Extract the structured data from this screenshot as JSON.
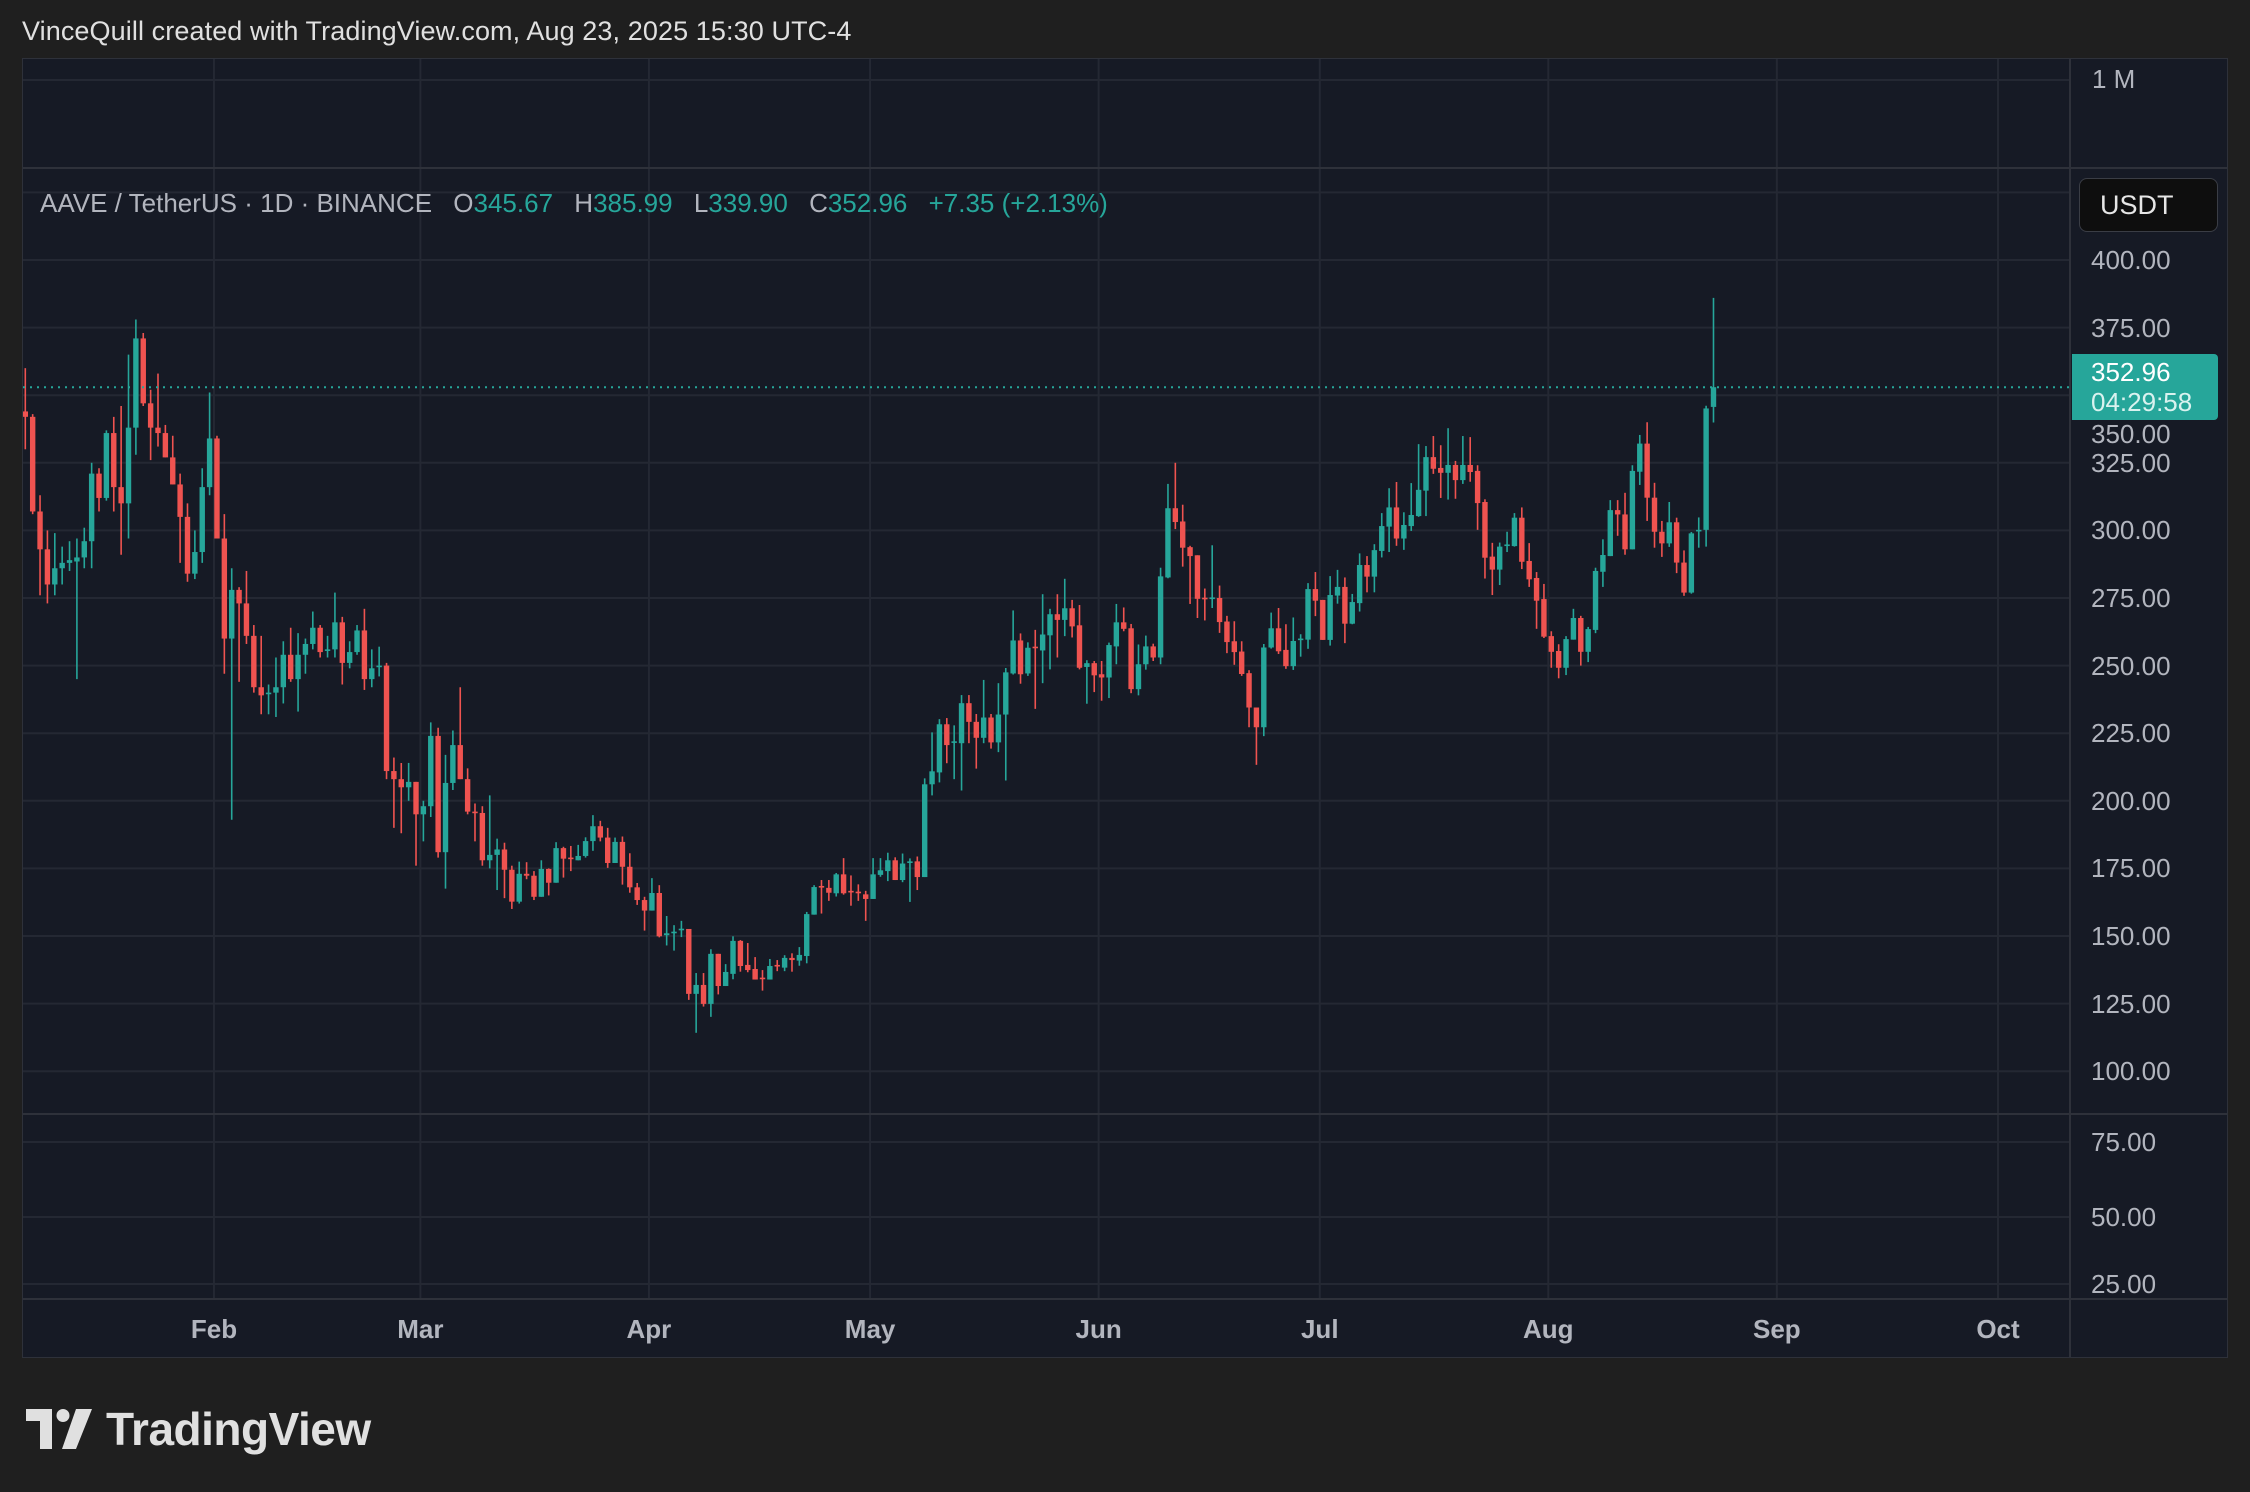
{
  "header": {
    "attribution": "VinceQuill created with TradingView.com, Aug 23, 2025 15:30 UTC-4"
  },
  "legend": {
    "symbol": "AAVE / TetherUS · 1D · BINANCE",
    "o_label": "O",
    "o_value": "345.67",
    "h_label": "H",
    "h_value": "385.99",
    "l_label": "L",
    "l_value": "339.90",
    "c_label": "C",
    "c_value": "352.96",
    "change": "+7.35 (+2.13%)"
  },
  "top_pane": {
    "label": "1 M"
  },
  "currency_button": "USDT",
  "last_price": {
    "value": "352.96",
    "countdown": "04:29:58"
  },
  "footer": {
    "brand": "TradingView"
  },
  "colors": {
    "up": "#26a69a",
    "down": "#ef5350",
    "background": "#161a25",
    "grid": "#242833",
    "last_price_line": "#26a69a"
  },
  "chart_data": {
    "type": "candlestick",
    "interval": "1D",
    "first_date": "2025-01-06",
    "ylim": [
      100,
      400
    ],
    "grid": true,
    "price_ticks": [
      "400.00",
      "375.00",
      "350.00",
      "325.00",
      "300.00",
      "275.00",
      "250.00",
      "225.00",
      "200.00",
      "175.00",
      "150.00",
      "125.00",
      "100.00"
    ],
    "lower_pane_ticks": [
      "75.00",
      "50.00",
      "25.00"
    ],
    "x_ticks": [
      {
        "date": "2025-02-01",
        "label": "Feb"
      },
      {
        "date": "2025-03-01",
        "label": "Mar"
      },
      {
        "date": "2025-04-01",
        "label": "Apr"
      },
      {
        "date": "2025-05-01",
        "label": "May"
      },
      {
        "date": "2025-06-01",
        "label": "Jun"
      },
      {
        "date": "2025-07-01",
        "label": "Jul"
      },
      {
        "date": "2025-08-01",
        "label": "Aug"
      },
      {
        "date": "2025-09-01",
        "label": "Sep"
      },
      {
        "date": "2025-10-01",
        "label": "Oct"
      }
    ],
    "last_price": 352.96,
    "ohlc": [
      [
        344,
        360,
        330,
        342
      ],
      [
        342,
        343,
        306,
        307
      ],
      [
        307,
        313,
        276,
        293
      ],
      [
        293,
        300,
        273,
        280
      ],
      [
        280,
        299,
        276,
        286
      ],
      [
        286,
        294,
        280,
        288
      ],
      [
        288,
        296,
        285,
        289
      ],
      [
        288.5,
        297,
        245,
        290
      ],
      [
        290,
        301,
        286,
        296
      ],
      [
        296,
        325,
        286,
        321
      ],
      [
        321,
        323,
        307,
        312
      ],
      [
        312,
        337,
        311,
        336
      ],
      [
        336,
        342,
        307,
        316
      ],
      [
        316,
        346,
        291,
        310
      ],
      [
        310,
        365,
        297,
        338
      ],
      [
        338,
        378,
        328,
        371
      ],
      [
        371,
        373,
        346,
        347
      ],
      [
        347,
        352,
        326,
        338
      ],
      [
        338,
        358,
        331,
        336
      ],
      [
        336,
        339,
        327,
        327
      ],
      [
        327,
        335,
        317,
        317
      ],
      [
        317,
        321,
        288,
        305
      ],
      [
        305,
        310,
        281,
        284
      ],
      [
        284,
        300,
        282,
        292
      ],
      [
        292,
        323,
        288,
        316
      ],
      [
        316,
        351,
        313,
        334
      ],
      [
        334,
        335,
        297,
        297
      ],
      [
        297,
        306,
        247,
        260
      ],
      [
        260,
        286,
        193,
        278
      ],
      [
        278,
        279,
        244,
        273
      ],
      [
        273,
        285,
        258,
        261
      ],
      [
        261,
        265,
        240,
        242
      ],
      [
        242,
        261,
        232,
        239
      ],
      [
        239.5,
        243,
        232,
        240
      ],
      [
        240,
        253,
        231,
        242
      ],
      [
        242,
        259,
        236,
        254
      ],
      [
        254,
        264,
        244,
        245
      ],
      [
        245,
        262,
        233,
        254
      ],
      [
        254,
        260,
        247,
        258
      ],
      [
        258,
        270,
        256,
        264
      ],
      [
        264,
        265,
        253,
        255
      ],
      [
        255.5,
        261,
        253,
        256
      ],
      [
        256,
        277,
        253,
        266
      ],
      [
        266,
        268,
        243,
        251
      ],
      [
        251,
        259,
        249,
        255
      ],
      [
        255,
        265,
        254,
        263
      ],
      [
        263,
        271,
        241,
        245
      ],
      [
        245,
        256,
        242,
        249
      ],
      [
        249.5,
        257,
        246,
        250
      ],
      [
        250,
        251,
        208,
        211
      ],
      [
        211,
        216,
        190,
        208
      ],
      [
        208,
        214,
        188,
        205
      ],
      [
        205,
        214,
        200,
        207
      ],
      [
        207,
        207,
        176,
        195
      ],
      [
        195,
        200,
        185,
        198
      ],
      [
        198,
        229,
        194,
        224
      ],
      [
        224,
        227,
        179,
        181
      ],
      [
        181,
        217,
        167.5,
        206.6
      ],
      [
        206.6,
        226,
        204,
        220.6
      ],
      [
        220.6,
        242,
        208,
        208
      ],
      [
        208,
        212,
        195,
        196
      ],
      [
        196,
        199,
        185,
        195.5
      ],
      [
        195.5,
        198,
        176,
        178
      ],
      [
        178,
        202,
        175,
        180
      ],
      [
        180,
        186,
        167,
        182
      ],
      [
        182,
        184.5,
        164,
        174.5
      ],
      [
        174.5,
        176,
        160,
        162.7
      ],
      [
        162.7,
        177.5,
        162,
        173
      ],
      [
        173,
        177.3,
        171,
        172.3
      ],
      [
        172.3,
        174,
        163.3,
        164.5
      ],
      [
        164.5,
        178,
        164.5,
        174.8
      ],
      [
        174.8,
        175,
        165,
        169.7
      ],
      [
        169.7,
        184.7,
        169.7,
        182.5
      ],
      [
        182.5,
        183,
        171.6,
        178.6
      ],
      [
        179,
        183.3,
        174,
        178.6
      ],
      [
        178,
        183.7,
        178,
        179.6
      ],
      [
        179.6,
        186.5,
        179,
        185.1
      ],
      [
        185.1,
        194.7,
        181.5,
        190.6
      ],
      [
        190.6,
        192.6,
        185,
        186.4
      ],
      [
        186.4,
        190,
        175.2,
        177
      ],
      [
        177,
        186.4,
        177,
        184.8
      ],
      [
        184.8,
        186.8,
        169,
        175.6
      ],
      [
        175.6,
        180.6,
        166,
        168
      ],
      [
        168,
        169.6,
        161.5,
        163.3
      ],
      [
        163.3,
        164.5,
        152,
        159.4
      ],
      [
        159.4,
        171.4,
        159.4,
        165.9
      ],
      [
        165.9,
        168.8,
        149.5,
        149.9
      ],
      [
        150.3,
        157.4,
        146.5,
        151
      ],
      [
        151.2,
        154,
        144.6,
        151.6
      ],
      [
        152.5,
        155.6,
        149.6,
        152.7
      ],
      [
        152.6,
        152.6,
        126.4,
        128.6
      ],
      [
        128.6,
        136.3,
        114.2,
        131.9
      ],
      [
        131.9,
        136.3,
        123.9,
        124.9
      ],
      [
        124.9,
        145.1,
        120.1,
        143.4
      ],
      [
        143.4,
        143.4,
        128.4,
        131.5
      ],
      [
        131.5,
        139.6,
        131.5,
        136.7
      ],
      [
        136,
        149.9,
        134,
        148.2
      ],
      [
        148.2,
        148.5,
        136.8,
        138.9
      ],
      [
        139.3,
        147.4,
        136.6,
        137.4
      ],
      [
        137.8,
        142.2,
        133.9,
        133.9
      ],
      [
        134.6,
        137.4,
        129.8,
        134.1
      ],
      [
        133.9,
        141.5,
        133.9,
        138.9
      ],
      [
        139.3,
        141.1,
        137,
        138.9
      ],
      [
        138.3,
        142.9,
        137,
        141.9
      ],
      [
        141.9,
        143.6,
        136.8,
        141.1
      ],
      [
        140.9,
        145.9,
        139,
        143
      ],
      [
        142.6,
        158.9,
        139.9,
        158.1
      ],
      [
        157.9,
        168.8,
        157.9,
        168.1
      ],
      [
        168.5,
        170.7,
        158.3,
        167.9
      ],
      [
        167.8,
        170.7,
        163,
        166
      ],
      [
        165.8,
        173.3,
        164.6,
        172.8
      ],
      [
        172.8,
        178.8,
        165.3,
        165.8
      ],
      [
        166.7,
        172.4,
        161.2,
        166.1
      ],
      [
        166.4,
        169.1,
        163,
        165.8
      ],
      [
        165.4,
        166.7,
        155.6,
        163.7
      ],
      [
        163.7,
        178.8,
        163.7,
        172.8
      ],
      [
        172.6,
        178.8,
        171.9,
        174.3
      ],
      [
        174,
        180.8,
        170.3,
        178
      ],
      [
        178,
        179.1,
        170.7,
        170.7
      ],
      [
        170.7,
        180.5,
        169.9,
        176.8
      ],
      [
        177.1,
        178.7,
        162.6,
        177.6
      ],
      [
        177.6,
        179.4,
        167,
        171.8
      ],
      [
        171.8,
        208.3,
        171.8,
        206.1
      ],
      [
        206.1,
        225.3,
        202,
        210.9
      ],
      [
        210.5,
        230.2,
        206.8,
        228.3
      ],
      [
        228.3,
        230.6,
        213.9,
        220.6
      ],
      [
        221.6,
        227.9,
        208,
        222
      ],
      [
        221.3,
        239.1,
        203.8,
        236.1
      ],
      [
        236.1,
        239.1,
        221.3,
        229.2
      ],
      [
        229.2,
        232.1,
        211.9,
        223.3
      ],
      [
        223.3,
        244.7,
        221.3,
        230.8
      ],
      [
        230.8,
        232.1,
        219.3,
        221.6
      ],
      [
        221.6,
        243.5,
        218,
        231.9
      ],
      [
        231.9,
        249.1,
        207.5,
        247.5
      ],
      [
        247.1,
        270.4,
        246.7,
        259.3
      ],
      [
        259.3,
        261.9,
        243.3,
        246.8
      ],
      [
        247.1,
        258.6,
        246.2,
        256.6
      ],
      [
        257,
        263.2,
        234,
        256.6
      ],
      [
        255.6,
        276.4,
        243.5,
        261.5
      ],
      [
        261.2,
        271,
        248.6,
        269
      ],
      [
        269,
        276.4,
        253,
        266.9
      ],
      [
        266.9,
        282.1,
        260.9,
        271.2
      ],
      [
        271.2,
        274.3,
        260.4,
        264.5
      ],
      [
        264.9,
        272.4,
        248.6,
        249.2
      ],
      [
        249.5,
        252,
        235.9,
        250.9
      ],
      [
        250.9,
        251.7,
        240.2,
        246.4
      ],
      [
        246.8,
        251.7,
        237,
        245.6
      ],
      [
        245.6,
        258.5,
        238,
        257.6
      ],
      [
        257.1,
        272.8,
        250.5,
        266
      ],
      [
        266,
        271.5,
        262.7,
        263.6
      ],
      [
        263.8,
        265.4,
        239.8,
        241.3
      ],
      [
        241.3,
        257.8,
        239,
        250.5
      ],
      [
        250.5,
        261.1,
        248.5,
        257.1
      ],
      [
        257.1,
        258.1,
        251.7,
        253
      ],
      [
        253,
        286.2,
        250.5,
        283
      ],
      [
        282.6,
        317.2,
        282.3,
        308.2
      ],
      [
        308.2,
        325,
        300.5,
        303.1
      ],
      [
        303.3,
        309.5,
        286.6,
        293.6
      ],
      [
        293.8,
        294.3,
        272.8,
        290.5
      ],
      [
        290.8,
        290.8,
        267.6,
        274.7
      ],
      [
        275.1,
        278.5,
        266.7,
        275
      ],
      [
        275,
        294.5,
        271.3,
        275.2
      ],
      [
        275,
        279.6,
        262.1,
        266.1
      ],
      [
        266.3,
        268.4,
        254.6,
        258.7
      ],
      [
        259,
        266.4,
        250.3,
        255
      ],
      [
        255.2,
        259,
        246.2,
        246.9
      ],
      [
        247.2,
        248.3,
        227.2,
        234.5
      ],
      [
        234.5,
        234.5,
        213.3,
        227.2
      ],
      [
        227.2,
        258,
        223.9,
        256.7
      ],
      [
        256.7,
        269.6,
        256.3,
        263.8
      ],
      [
        263.8,
        271.3,
        254.3,
        255.3
      ],
      [
        255.8,
        265.3,
        248.8,
        249.8
      ],
      [
        249.8,
        267.8,
        248.4,
        259.1
      ],
      [
        259.8,
        261.6,
        253.3,
        260
      ],
      [
        259.6,
        280.5,
        256.2,
        278.3
      ],
      [
        278.3,
        284.6,
        268.3,
        274
      ],
      [
        274.3,
        274.3,
        259.5,
        259.5
      ],
      [
        259.5,
        283.1,
        257.4,
        276.1
      ],
      [
        275.9,
        285.4,
        272.9,
        279.1
      ],
      [
        279.1,
        282.6,
        258.3,
        265.5
      ],
      [
        265.5,
        276.5,
        265.3,
        273.5
      ],
      [
        273.1,
        291.5,
        270,
        287.2
      ],
      [
        287.2,
        290.5,
        277.1,
        282.9
      ],
      [
        282.9,
        294.9,
        277.1,
        292.7
      ],
      [
        292.4,
        306.4,
        290,
        301.6
      ],
      [
        301.4,
        315.6,
        292,
        308.5
      ],
      [
        308.5,
        317.9,
        294.3,
        297
      ],
      [
        297,
        306.7,
        292.8,
        302
      ],
      [
        301.6,
        317.5,
        299.8,
        305.7
      ],
      [
        305.3,
        331.9,
        305,
        315
      ],
      [
        314.7,
        331.2,
        305.3,
        327.1
      ],
      [
        327.1,
        334.9,
        320.9,
        322.8
      ],
      [
        323.1,
        331.5,
        312,
        321.3
      ],
      [
        321.3,
        337.8,
        311.4,
        324.2
      ],
      [
        324.2,
        325.7,
        311.7,
        318.6
      ],
      [
        318.6,
        334.9,
        317.2,
        324.2
      ],
      [
        324.2,
        334.5,
        318,
        321.6
      ],
      [
        322,
        324.1,
        300.2,
        310.1
      ],
      [
        310.5,
        311.5,
        282.2,
        289.9
      ],
      [
        290.3,
        295.4,
        276.1,
        285.5
      ],
      [
        285.5,
        295.5,
        279.8,
        294
      ],
      [
        294.6,
        299.5,
        292,
        294.8
      ],
      [
        294.2,
        306.4,
        294,
        304.7
      ],
      [
        304.7,
        308.5,
        285.7,
        288.4
      ],
      [
        288.7,
        295.3,
        279.1,
        281.9
      ],
      [
        282.4,
        284.6,
        263.6,
        274
      ],
      [
        274.6,
        280.2,
        260.2,
        260.7
      ],
      [
        260.9,
        262.7,
        249.2,
        255.1
      ],
      [
        255.4,
        257.9,
        245.3,
        249.2
      ],
      [
        249.2,
        260.9,
        246.5,
        259.8
      ],
      [
        259.6,
        271,
        259.6,
        267.6
      ],
      [
        267.6,
        268.4,
        250,
        255.1
      ],
      [
        255.1,
        264.3,
        251.3,
        263.5
      ],
      [
        263.2,
        286.2,
        262,
        285
      ],
      [
        284.7,
        296.7,
        279.1,
        290.9
      ],
      [
        290.5,
        311.2,
        290.5,
        307.5
      ],
      [
        307.5,
        311.2,
        298,
        305.9
      ],
      [
        305.9,
        313.9,
        291,
        293
      ],
      [
        293,
        324.1,
        293,
        322
      ],
      [
        321.7,
        335.3,
        316.8,
        332.1
      ],
      [
        332.1,
        340,
        303.5,
        312.1
      ],
      [
        312.1,
        317.6,
        293.6,
        299.5
      ],
      [
        299.5,
        303.5,
        290.2,
        295.2
      ],
      [
        295.2,
        310.5,
        293.9,
        303
      ],
      [
        303,
        304.7,
        284.2,
        288.1
      ],
      [
        288.1,
        292.6,
        275.8,
        277
      ],
      [
        277,
        299.4,
        276.6,
        298.9
      ],
      [
        299.8,
        304.8,
        293.6,
        300.2
      ],
      [
        300.2,
        346.1,
        294,
        345.1
      ],
      [
        345.67,
        385.99,
        339.9,
        352.96
      ]
    ]
  }
}
